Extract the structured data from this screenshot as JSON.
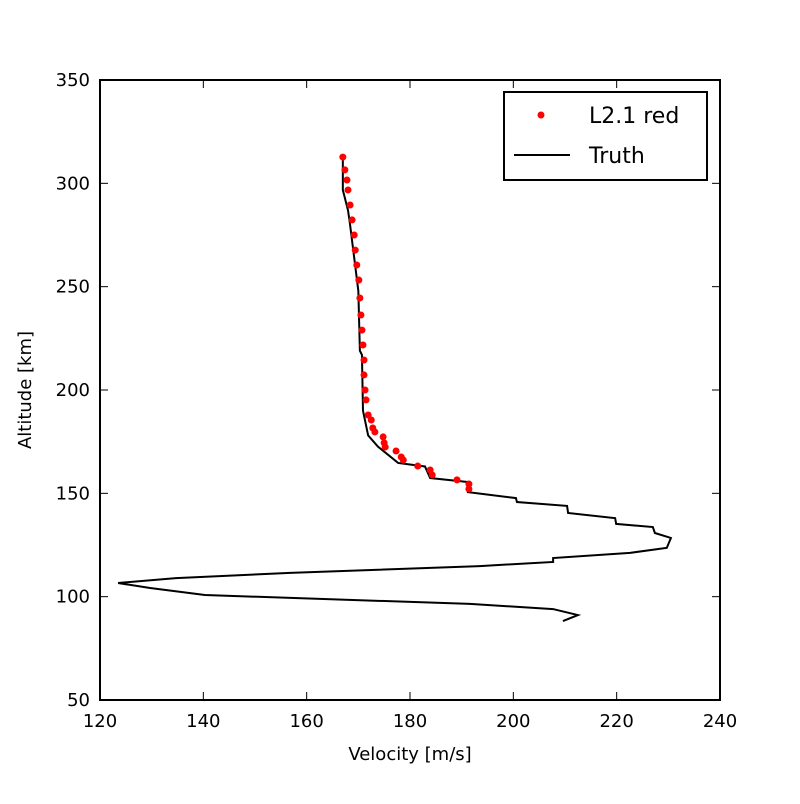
{
  "chart_data": {
    "type": "scatter_line",
    "xlabel": "Velocity [m/s]",
    "ylabel": "Altitude [km]",
    "xlim": [
      120,
      240
    ],
    "ylim": [
      50,
      350
    ],
    "xticks": [
      120,
      140,
      160,
      180,
      200,
      220,
      240
    ],
    "yticks": [
      50,
      100,
      150,
      200,
      250,
      300,
      350
    ],
    "legend": "upper right",
    "series": [
      {
        "name": "L2.1 red",
        "color": "#ff0000",
        "kind": "scatter",
        "x": [
          167.0,
          167.4,
          167.8,
          168.0,
          168.4,
          168.8,
          169.2,
          169.4,
          169.7,
          170.1,
          170.3,
          170.5,
          170.7,
          170.9,
          171.1,
          171.1,
          171.3,
          171.5,
          171.9,
          172.5,
          172.8,
          173.2,
          174.8,
          175.0,
          175.2,
          177.3,
          178.3,
          178.7,
          181.5,
          183.9,
          184.3,
          189.1,
          191.4,
          191.4
        ],
        "values": [
          312.7,
          306.5,
          301.6,
          296.8,
          289.5,
          282.3,
          275.0,
          267.7,
          260.5,
          253.2,
          244.5,
          236.3,
          229.0,
          221.8,
          214.5,
          207.3,
          200.0,
          195.2,
          187.9,
          185.5,
          181.6,
          179.7,
          177.3,
          174.4,
          172.4,
          170.5,
          167.6,
          166.1,
          163.2,
          161.3,
          158.9,
          156.5,
          154.5,
          152.1
        ]
      },
      {
        "name": "Truth",
        "color": "#000000",
        "kind": "line",
        "x": [
          167.0,
          167.0,
          168.0,
          168.4,
          169.0,
          170.0,
          170.3,
          170.7,
          170.9,
          171.9,
          173.8,
          177.7,
          182.9,
          183.9,
          191.2,
          191.2,
          200.5,
          200.7,
          210.4,
          210.6,
          219.7,
          219.9,
          227.0,
          227.4,
          230.5,
          229.7,
          222.6,
          207.7,
          207.7,
          193.5,
          156.8,
          134.7,
          123.5,
          129.7,
          140.3,
          191.6,
          207.7,
          212.5,
          209.6
        ],
        "values": [
          312.7,
          296.8,
          287.0,
          280.0,
          268.0,
          248.0,
          219.0,
          217.0,
          190.0,
          178.0,
          172.6,
          164.7,
          163.0,
          157.4,
          155.5,
          150.6,
          147.7,
          145.8,
          143.9,
          140.5,
          138.0,
          135.2,
          133.7,
          130.8,
          128.4,
          123.6,
          121.2,
          118.7,
          116.8,
          114.8,
          111.5,
          109.0,
          106.6,
          104.2,
          100.8,
          96.5,
          94.0,
          91.1,
          88.2
        ]
      }
    ]
  }
}
